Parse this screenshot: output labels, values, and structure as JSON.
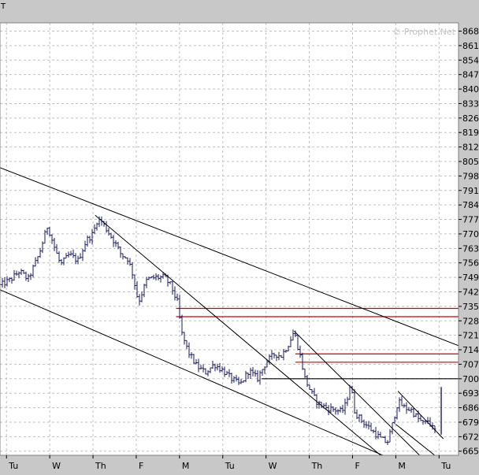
{
  "header": {
    "label": "T"
  },
  "watermark": "© Prophet.Net",
  "colors": {
    "background": "#ffffff",
    "frame": "#c8c8c8",
    "price_bars": "#1a1a66",
    "trendlines": "#000000",
    "resistance": "#cc0000",
    "grid": "#c0c0c0"
  },
  "chart_data": {
    "type": "ohlc",
    "y_range": [
      663,
      872
    ],
    "y_ticks": [
      868,
      861,
      854,
      847,
      840,
      833,
      826,
      819,
      812,
      805,
      798,
      791,
      784,
      777,
      770,
      763,
      756,
      749,
      742,
      735,
      728,
      721,
      714,
      707,
      700,
      693,
      686,
      679,
      672,
      665
    ],
    "x_range": [
      -0.15,
      10.45
    ],
    "x_ticks": [
      {
        "label": "Tu",
        "x": 0
      },
      {
        "label": "W",
        "x": 1
      },
      {
        "label": "Th",
        "x": 2
      },
      {
        "label": "F",
        "x": 3
      },
      {
        "label": "M",
        "x": 4
      },
      {
        "label": "Tu",
        "x": 5
      },
      {
        "label": "W",
        "x": 6
      },
      {
        "label": "Th",
        "x": 7
      },
      {
        "label": "F",
        "x": 8
      },
      {
        "label": "M",
        "x": 9
      },
      {
        "label": "Tu",
        "x": 10
      }
    ],
    "grid": true,
    "price_path": [
      [
        -0.15,
        745
      ],
      [
        0.1,
        748
      ],
      [
        0.3,
        752
      ],
      [
        0.5,
        748
      ],
      [
        0.75,
        760
      ],
      [
        0.95,
        774
      ],
      [
        1.1,
        764
      ],
      [
        1.25,
        755
      ],
      [
        1.45,
        760
      ],
      [
        1.65,
        757
      ],
      [
        1.85,
        767
      ],
      [
        2.0,
        770
      ],
      [
        2.1,
        777
      ],
      [
        2.2,
        776
      ],
      [
        2.35,
        771
      ],
      [
        2.5,
        766
      ],
      [
        2.65,
        760
      ],
      [
        2.8,
        758
      ],
      [
        2.9,
        752
      ],
      [
        3.0,
        742
      ],
      [
        3.05,
        737
      ],
      [
        3.25,
        748
      ],
      [
        3.45,
        749
      ],
      [
        3.65,
        749
      ],
      [
        3.8,
        745
      ],
      [
        3.95,
        737
      ],
      [
        4.05,
        722
      ],
      [
        4.2,
        713
      ],
      [
        4.4,
        706
      ],
      [
        4.6,
        703
      ],
      [
        4.8,
        707
      ],
      [
        5.0,
        704
      ],
      [
        5.2,
        700
      ],
      [
        5.4,
        697
      ],
      [
        5.6,
        704
      ],
      [
        5.8,
        700
      ],
      [
        6.0,
        708
      ],
      [
        6.2,
        712
      ],
      [
        6.35,
        711
      ],
      [
        6.5,
        716
      ],
      [
        6.65,
        723
      ],
      [
        6.8,
        710
      ],
      [
        6.9,
        700
      ],
      [
        7.05,
        693
      ],
      [
        7.2,
        688
      ],
      [
        7.4,
        686
      ],
      [
        7.6,
        685
      ],
      [
        7.75,
        684
      ],
      [
        7.85,
        688
      ],
      [
        7.95,
        698
      ],
      [
        8.05,
        684
      ],
      [
        8.2,
        680
      ],
      [
        8.35,
        677
      ],
      [
        8.5,
        674
      ],
      [
        8.65,
        671
      ],
      [
        8.8,
        669
      ],
      [
        8.9,
        676
      ],
      [
        9.05,
        689
      ],
      [
        9.2,
        686
      ],
      [
        9.35,
        685
      ],
      [
        9.5,
        681
      ],
      [
        9.65,
        678
      ],
      [
        9.75,
        680
      ],
      [
        9.85,
        676
      ],
      [
        9.95,
        674
      ]
    ],
    "last_bar": {
      "x": 10.05,
      "low": 673,
      "high": 696
    },
    "trendlines": [
      {
        "p1": [
          -0.15,
          802
        ],
        "p2": [
          10.45,
          716
        ]
      },
      {
        "p1": [
          2.05,
          779
        ],
        "p2": [
          8.65,
          663
        ]
      },
      {
        "p1": [
          -0.15,
          743
        ],
        "p2": [
          8.7,
          663
        ]
      },
      {
        "p1": [
          6.65,
          723
        ],
        "p2": [
          9.55,
          663
        ]
      },
      {
        "p1": [
          9.05,
          694
        ],
        "p2": [
          10.1,
          671
        ]
      },
      {
        "p1": [
          9.0,
          678
        ],
        "p2": [
          9.9,
          663
        ]
      }
    ],
    "horizontal_levels": [
      {
        "value": 734,
        "from_x": 3.92,
        "color": "red"
      },
      {
        "value": 730,
        "from_x": 3.92,
        "color": "red"
      },
      {
        "value": 712,
        "from_x": 6.68,
        "color": "red"
      },
      {
        "value": 708,
        "from_x": 6.68,
        "color": "red"
      },
      {
        "value": 700,
        "from_x": 5.9,
        "color": "black"
      }
    ]
  }
}
